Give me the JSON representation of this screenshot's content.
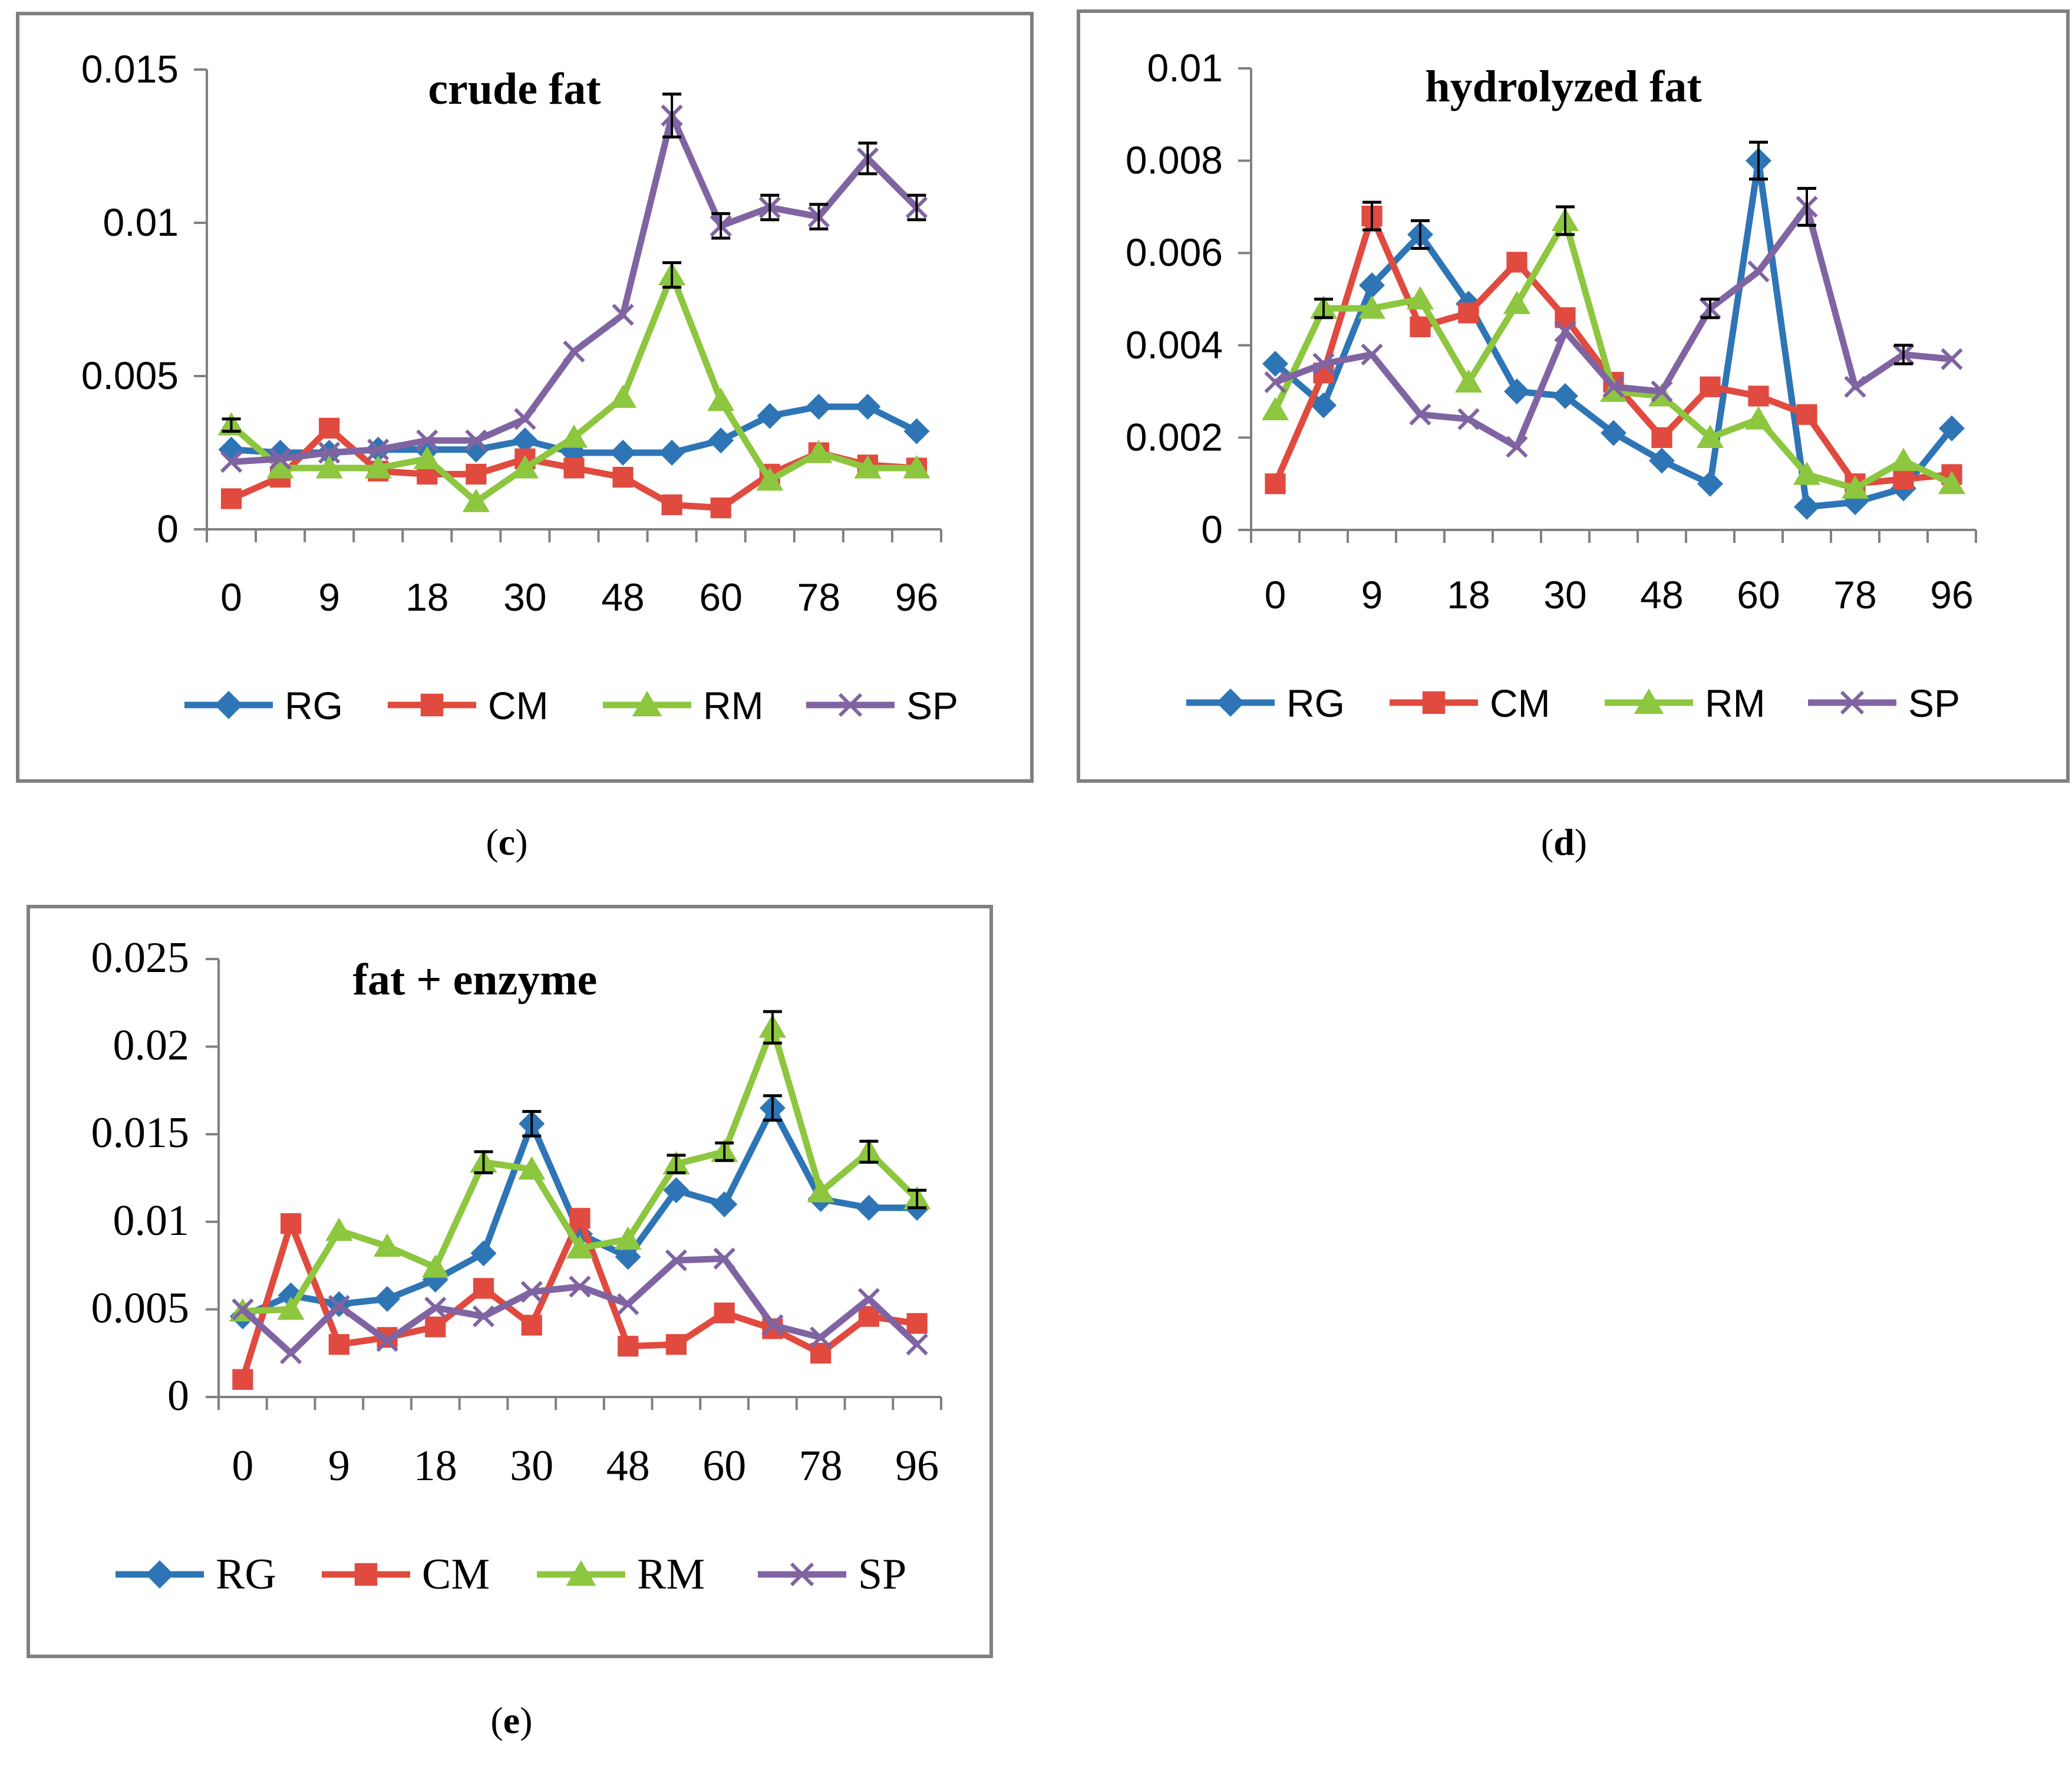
{
  "colors": {
    "RG": "#2E75B6",
    "CM": "#E04A3F",
    "RM": "#8DC63F",
    "SP": "#8064A2",
    "axis": "#808080",
    "errbar": "#000000"
  },
  "captions": {
    "c": "c",
    "d": "d",
    "e": "e"
  },
  "chart_data": [
    {
      "id": "c",
      "type": "line",
      "title": "crude fat",
      "x": [
        0,
        4.5,
        9,
        13.5,
        18,
        24,
        30,
        39,
        48,
        54,
        60,
        69,
        78,
        87,
        96
      ],
      "xticks": [
        "0",
        "9",
        "18",
        "30",
        "48",
        "60",
        "78",
        "96"
      ],
      "ylim": [
        0,
        0.015
      ],
      "yticks": [
        "0",
        "0.005",
        "0.01",
        "0.015"
      ],
      "legend": [
        "RG",
        "CM",
        "RM",
        "SP"
      ],
      "legend_position": "bottom",
      "series": [
        {
          "name": "RG",
          "marker": "diamond",
          "values": [
            0.0026,
            0.0025,
            0.0025,
            0.0026,
            0.0026,
            0.0026,
            0.0029,
            0.0025,
            0.0025,
            0.0025,
            0.0029,
            0.0037,
            0.004,
            0.004,
            0.0032
          ]
        },
        {
          "name": "CM",
          "marker": "square",
          "values": [
            0.001,
            0.0017,
            0.0033,
            0.0019,
            0.0018,
            0.0018,
            0.0023,
            0.002,
            0.0017,
            0.0008,
            0.0007,
            0.0018,
            0.0025,
            0.0021,
            0.002
          ]
        },
        {
          "name": "RM",
          "marker": "triangle",
          "values": [
            0.0034,
            0.002,
            0.002,
            0.002,
            0.0023,
            0.0009,
            0.002,
            0.003,
            0.0043,
            0.0083,
            0.0042,
            0.0016,
            0.0025,
            0.002,
            0.002
          ]
        },
        {
          "name": "SP",
          "marker": "x",
          "values": [
            0.0022,
            0.0023,
            0.0025,
            0.0026,
            0.0029,
            0.0029,
            0.0036,
            0.0058,
            0.007,
            0.0135,
            0.0099,
            0.0105,
            0.0102,
            0.0121,
            0.0105
          ]
        }
      ],
      "error_bars": [
        {
          "series": "RM",
          "x": 0,
          "err": 0.0002
        },
        {
          "series": "RM",
          "x": 54,
          "err": 0.0004
        },
        {
          "series": "SP",
          "x": 54,
          "err": 0.0007
        },
        {
          "series": "SP",
          "x": 60,
          "err": 0.0004
        },
        {
          "series": "SP",
          "x": 69,
          "err": 0.0004
        },
        {
          "series": "SP",
          "x": 78,
          "err": 0.0004
        },
        {
          "series": "SP",
          "x": 87,
          "err": 0.0005
        },
        {
          "series": "SP",
          "x": 96,
          "err": 0.0004
        }
      ]
    },
    {
      "id": "d",
      "type": "line",
      "title": "hydrolyzed fat",
      "x": [
        0,
        4.5,
        9,
        13.5,
        18,
        24,
        30,
        39,
        48,
        54,
        60,
        69,
        78,
        87,
        96
      ],
      "xticks": [
        "0",
        "9",
        "18",
        "30",
        "48",
        "60",
        "78",
        "96"
      ],
      "ylim": [
        0,
        0.01
      ],
      "yticks": [
        "0",
        "0.002",
        "0.004",
        "0.006",
        "0.008",
        "0.01"
      ],
      "legend": [
        "RG",
        "CM",
        "RM",
        "SP"
      ],
      "legend_position": "bottom",
      "series": [
        {
          "name": "RG",
          "marker": "diamond",
          "values": [
            0.0036,
            0.0027,
            0.0053,
            0.0064,
            0.0049,
            0.003,
            0.0029,
            0.0021,
            0.0015,
            0.001,
            0.008,
            0.0005,
            0.0006,
            0.0009,
            0.0022
          ]
        },
        {
          "name": "CM",
          "marker": "square",
          "values": [
            0.001,
            0.0034,
            0.0068,
            0.0044,
            0.0047,
            0.0058,
            0.0046,
            0.0032,
            0.002,
            0.0031,
            0.0029,
            0.0025,
            0.001,
            0.0011,
            0.0012
          ]
        },
        {
          "name": "RM",
          "marker": "triangle",
          "values": [
            0.0026,
            0.0048,
            0.0048,
            0.005,
            0.0032,
            0.0049,
            0.0067,
            0.003,
            0.0029,
            0.002,
            0.0024,
            0.0012,
            0.0009,
            0.0015,
            0.001
          ]
        },
        {
          "name": "SP",
          "marker": "x",
          "values": [
            0.0032,
            0.0036,
            0.0038,
            0.0025,
            0.0024,
            0.0018,
            0.0043,
            0.0031,
            0.003,
            0.0048,
            0.0056,
            0.007,
            0.0031,
            0.0038,
            0.0037
          ]
        }
      ],
      "error_bars": [
        {
          "series": "RG",
          "x": 13.5,
          "err": 0.0003
        },
        {
          "series": "RG",
          "x": 60,
          "err": 0.0004
        },
        {
          "series": "CM",
          "x": 9,
          "err": 0.0003
        },
        {
          "series": "RM",
          "x": 4.5,
          "err": 0.0002
        },
        {
          "series": "RM",
          "x": 30,
          "err": 0.0003
        },
        {
          "series": "SP",
          "x": 54,
          "err": 0.0002
        },
        {
          "series": "SP",
          "x": 69,
          "err": 0.0004
        },
        {
          "series": "SP",
          "x": 87,
          "err": 0.0002
        }
      ]
    },
    {
      "id": "e",
      "type": "line",
      "title": "fat + enzyme",
      "x": [
        0,
        4.5,
        9,
        13.5,
        18,
        24,
        30,
        39,
        48,
        54,
        60,
        69,
        78,
        87,
        96
      ],
      "xticks": [
        "0",
        "9",
        "18",
        "30",
        "48",
        "60",
        "78",
        "96"
      ],
      "ylim": [
        0,
        0.025
      ],
      "yticks": [
        "0",
        "0.005",
        "0.01",
        "0.015",
        "0.02",
        "0.025"
      ],
      "legend": [
        "RG",
        "CM",
        "RM",
        "SP"
      ],
      "legend_position": "bottom",
      "series": [
        {
          "name": "RG",
          "marker": "diamond",
          "values": [
            0.0046,
            0.0058,
            0.0053,
            0.0056,
            0.0067,
            0.0082,
            0.0156,
            0.0093,
            0.008,
            0.0118,
            0.011,
            0.0165,
            0.0113,
            0.0108,
            0.0108
          ]
        },
        {
          "name": "CM",
          "marker": "square",
          "values": [
            0.001,
            0.0099,
            0.003,
            0.0034,
            0.004,
            0.0062,
            0.0041,
            0.0102,
            0.0029,
            0.003,
            0.0048,
            0.0039,
            0.0025,
            0.0046,
            0.0042
          ]
        },
        {
          "name": "RM",
          "marker": "triangle",
          "values": [
            0.0049,
            0.005,
            0.0095,
            0.0086,
            0.0074,
            0.0134,
            0.013,
            0.0085,
            0.009,
            0.0133,
            0.014,
            0.0211,
            0.0117,
            0.014,
            0.0113
          ]
        },
        {
          "name": "SP",
          "marker": "x",
          "values": [
            0.005,
            0.0025,
            0.0052,
            0.0032,
            0.0051,
            0.0046,
            0.006,
            0.0063,
            0.0053,
            0.0078,
            0.0079,
            0.0041,
            0.0034,
            0.0056,
            0.003
          ]
        }
      ],
      "error_bars": [
        {
          "series": "RG",
          "x": 30,
          "err": 0.0007
        },
        {
          "series": "RG",
          "x": 69,
          "err": 0.0007
        },
        {
          "series": "RM",
          "x": 24,
          "err": 0.0006
        },
        {
          "series": "RM",
          "x": 54,
          "err": 0.0005
        },
        {
          "series": "RM",
          "x": 60,
          "err": 0.0005
        },
        {
          "series": "RM",
          "x": 69,
          "err": 0.0009
        },
        {
          "series": "RM",
          "x": 87,
          "err": 0.0006
        },
        {
          "series": "RM",
          "x": 96,
          "err": 0.0005
        }
      ]
    }
  ]
}
